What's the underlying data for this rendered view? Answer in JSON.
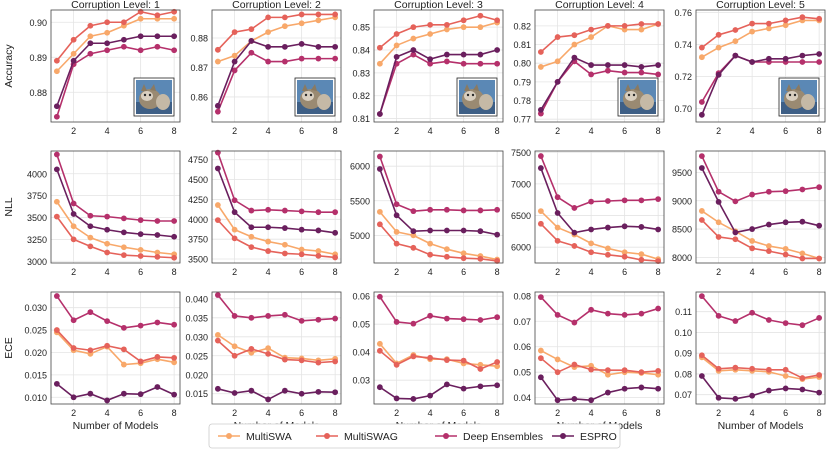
{
  "chart_data": {
    "type": "line",
    "layout": "grid 3 rows x 5 columns",
    "columns": [
      "Corruption Level: 1",
      "Corruption Level: 2",
      "Corruption Level: 3",
      "Corruption Level: 4",
      "Corruption Level: 5"
    ],
    "rows": [
      "Accuracy",
      "NLL",
      "ECE"
    ],
    "xlabel": "Number of Models",
    "x": [
      1,
      2,
      3,
      4,
      5,
      6,
      7,
      8
    ],
    "x_ticks": [
      "2",
      "4",
      "6",
      "8"
    ],
    "grid": true,
    "legend": {
      "placement": "bottom-center",
      "entries": [
        "MultiSWA",
        "MultiSWAG",
        "Deep Ensembles",
        "ESPRO"
      ]
    },
    "colors": {
      "MultiSWA": "#f8a86a",
      "MultiSWAG": "#e5625a",
      "Deep Ensembles": "#b5306b",
      "ESPRO": "#6a1f5e",
      "grid": "#e4e4e4",
      "frame": "#444444"
    },
    "thumbnail_icon": "cifar-cat-image",
    "panels": [
      {
        "row": 0,
        "col": 0,
        "ylim": [
          0.8715,
          0.9035
        ],
        "yticks": [
          0.88,
          0.89,
          0.9
        ],
        "ytick_labels": [
          "0.88",
          "0.89",
          "0.90"
        ],
        "series": {
          "MultiSWA": [
            0.886,
            0.891,
            0.896,
            0.897,
            0.899,
            0.901,
            0.901,
            0.901
          ],
          "MultiSWAG": [
            0.889,
            0.895,
            0.899,
            0.9,
            0.9,
            0.903,
            0.902,
            0.903
          ],
          "Deep Ensembles": [
            0.873,
            0.888,
            0.891,
            0.892,
            0.893,
            0.892,
            0.893,
            0.892
          ],
          "ESPRO": [
            0.876,
            0.889,
            0.894,
            0.894,
            0.895,
            0.896,
            0.896,
            0.896
          ]
        }
      },
      {
        "row": 0,
        "col": 1,
        "ylim": [
          0.8515,
          0.8895
        ],
        "yticks": [
          0.86,
          0.87,
          0.88
        ],
        "ytick_labels": [
          "0.86",
          "0.87",
          "0.88"
        ],
        "series": {
          "MultiSWA": [
            0.872,
            0.874,
            0.879,
            0.882,
            0.884,
            0.885,
            0.886,
            0.887
          ],
          "MultiSWAG": [
            0.876,
            0.882,
            0.883,
            0.887,
            0.887,
            0.888,
            0.888,
            0.888
          ],
          "Deep Ensembles": [
            0.855,
            0.869,
            0.875,
            0.872,
            0.872,
            0.873,
            0.873,
            0.873
          ],
          "ESPRO": [
            0.857,
            0.872,
            0.879,
            0.877,
            0.877,
            0.878,
            0.877,
            0.877
          ]
        }
      },
      {
        "row": 0,
        "col": 2,
        "ylim": [
          0.8085,
          0.8575
        ],
        "yticks": [
          0.81,
          0.82,
          0.83,
          0.84,
          0.85
        ],
        "ytick_labels": [
          "0.81",
          "0.82",
          "0.83",
          "0.84",
          "0.85"
        ],
        "series": {
          "MultiSWA": [
            0.834,
            0.842,
            0.845,
            0.847,
            0.849,
            0.85,
            0.85,
            0.852
          ],
          "MultiSWAG": [
            0.841,
            0.847,
            0.85,
            0.851,
            0.851,
            0.853,
            0.855,
            0.853
          ],
          "Deep Ensembles": [
            0.812,
            0.834,
            0.838,
            0.834,
            0.835,
            0.834,
            0.834,
            0.834
          ],
          "ESPRO": [
            0.812,
            0.837,
            0.84,
            0.836,
            0.838,
            0.838,
            0.838,
            0.84
          ]
        }
      },
      {
        "row": 0,
        "col": 3,
        "ylim": [
          0.7685,
          0.8285
        ],
        "yticks": [
          0.77,
          0.78,
          0.79,
          0.8,
          0.81,
          0.82
        ],
        "ytick_labels": [
          "0.77",
          "0.78",
          "0.79",
          "0.80",
          "0.81",
          "0.82"
        ],
        "series": {
          "MultiSWA": [
            0.798,
            0.801,
            0.81,
            0.814,
            0.82,
            0.818,
            0.818,
            0.821
          ],
          "MultiSWAG": [
            0.806,
            0.814,
            0.815,
            0.818,
            0.82,
            0.82,
            0.821,
            0.821
          ],
          "Deep Ensembles": [
            0.773,
            0.79,
            0.801,
            0.794,
            0.796,
            0.795,
            0.795,
            0.794
          ],
          "ESPRO": [
            0.775,
            0.79,
            0.803,
            0.799,
            0.799,
            0.799,
            0.798,
            0.799
          ]
        }
      },
      {
        "row": 0,
        "col": 4,
        "ylim": [
          0.6915,
          0.7615
        ],
        "yticks": [
          0.7,
          0.72,
          0.74,
          0.76
        ],
        "ytick_labels": [
          "0.70",
          "0.72",
          "0.74",
          "0.76"
        ],
        "series": {
          "MultiSWA": [
            0.732,
            0.738,
            0.742,
            0.748,
            0.75,
            0.752,
            0.755,
            0.755
          ],
          "MultiSWAG": [
            0.738,
            0.746,
            0.749,
            0.753,
            0.753,
            0.755,
            0.757,
            0.756
          ],
          "Deep Ensembles": [
            0.704,
            0.722,
            0.733,
            0.729,
            0.729,
            0.729,
            0.729,
            0.729
          ],
          "ESPRO": [
            0.696,
            0.721,
            0.733,
            0.729,
            0.731,
            0.731,
            0.733,
            0.734
          ]
        }
      },
      {
        "row": 1,
        "col": 0,
        "ylim": [
          2980,
          4260
        ],
        "yticks": [
          3000,
          3250,
          3500,
          3750,
          4000
        ],
        "ytick_labels": [
          "3000",
          "3250",
          "3500",
          "3750",
          "4000"
        ],
        "series": {
          "MultiSWA": [
            3680,
            3400,
            3270,
            3200,
            3160,
            3130,
            3100,
            3080
          ],
          "MultiSWAG": [
            3510,
            3250,
            3170,
            3100,
            3070,
            3060,
            3050,
            3040
          ],
          "Deep Ensembles": [
            4220,
            3660,
            3520,
            3510,
            3490,
            3470,
            3460,
            3460
          ],
          "ESPRO": [
            4050,
            3540,
            3400,
            3360,
            3330,
            3310,
            3300,
            3280
          ]
        }
      },
      {
        "row": 1,
        "col": 1,
        "ylim": [
          3450,
          4860
        ],
        "yticks": [
          3500,
          3750,
          4000,
          4250,
          4500,
          4750
        ],
        "ytick_labels": [
          "3500",
          "3750",
          "4000",
          "4250",
          "4500",
          "4750"
        ],
        "series": {
          "MultiSWA": [
            4180,
            3870,
            3780,
            3720,
            3680,
            3620,
            3600,
            3560
          ],
          "MultiSWAG": [
            3990,
            3760,
            3650,
            3600,
            3570,
            3560,
            3540,
            3520
          ],
          "Deep Ensembles": [
            4840,
            4240,
            4110,
            4120,
            4110,
            4100,
            4090,
            4090
          ],
          "ESPRO": [
            4640,
            4090,
            3900,
            3900,
            3890,
            3870,
            3860,
            3830
          ]
        }
      },
      {
        "row": 1,
        "col": 2,
        "ylim": [
          4600,
          6220
        ],
        "yticks": [
          5000,
          5500,
          6000
        ],
        "ytick_labels": [
          "5000",
          "5500",
          "6000"
        ],
        "series": {
          "MultiSWA": [
            5340,
            5050,
            5000,
            4880,
            4800,
            4740,
            4700,
            4650
          ],
          "MultiSWAG": [
            5160,
            4880,
            4820,
            4720,
            4690,
            4670,
            4660,
            4630
          ],
          "Deep Ensembles": [
            6140,
            5450,
            5350,
            5370,
            5370,
            5360,
            5360,
            5370
          ],
          "ESPRO": [
            5960,
            5290,
            5060,
            5070,
            5070,
            5070,
            5060,
            5010
          ]
        }
      },
      {
        "row": 1,
        "col": 3,
        "ylim": [
          5750,
          7520
        ],
        "yticks": [
          6000,
          6500,
          7000,
          7500
        ],
        "ytick_labels": [
          "6000",
          "6500",
          "7000",
          "7500"
        ],
        "series": {
          "MultiSWA": [
            6570,
            6310,
            6200,
            6060,
            5980,
            5920,
            5890,
            5810
          ],
          "MultiSWAG": [
            6370,
            6100,
            6020,
            5920,
            5880,
            5850,
            5800,
            5780
          ],
          "Deep Ensembles": [
            7440,
            6790,
            6620,
            6720,
            6730,
            6740,
            6740,
            6760
          ],
          "ESPRO": [
            7250,
            6540,
            6230,
            6280,
            6310,
            6330,
            6320,
            6280
          ]
        }
      },
      {
        "row": 1,
        "col": 4,
        "ylim": [
          7900,
          9880
        ],
        "yticks": [
          8000,
          8500,
          9000,
          9500
        ],
        "ytick_labels": [
          "8000",
          "8500",
          "9000",
          "9500"
        ],
        "series": {
          "MultiSWA": [
            8820,
            8620,
            8460,
            8290,
            8200,
            8150,
            8070,
            7980
          ],
          "MultiSWAG": [
            8660,
            8360,
            8320,
            8160,
            8110,
            8050,
            7980,
            7980
          ],
          "Deep Ensembles": [
            9790,
            9160,
            8990,
            9110,
            9160,
            9170,
            9200,
            9240
          ],
          "ESPRO": [
            9580,
            8980,
            8440,
            8500,
            8580,
            8620,
            8630,
            8560
          ]
        }
      },
      {
        "row": 2,
        "col": 0,
        "ylim": [
          0.0085,
          0.0335
        ],
        "yticks": [
          0.01,
          0.015,
          0.02,
          0.025,
          0.03
        ],
        "ytick_labels": [
          "0.010",
          "0.015",
          "0.020",
          "0.025",
          "0.030"
        ],
        "series": {
          "MultiSWA": [
            0.0245,
            0.0205,
            0.0197,
            0.0213,
            0.0173,
            0.0176,
            0.0185,
            0.0178
          ],
          "MultiSWAG": [
            0.025,
            0.021,
            0.0205,
            0.0215,
            0.0207,
            0.018,
            0.019,
            0.0188
          ],
          "Deep Ensembles": [
            0.0326,
            0.0272,
            0.029,
            0.027,
            0.0255,
            0.026,
            0.0267,
            0.0262
          ],
          "ESPRO": [
            0.013,
            0.01,
            0.0108,
            0.0093,
            0.0108,
            0.0107,
            0.0123,
            0.0106
          ]
        }
      },
      {
        "row": 2,
        "col": 1,
        "ylim": [
          0.0123,
          0.0418
        ],
        "yticks": [
          0.015,
          0.02,
          0.025,
          0.03,
          0.035,
          0.04
        ],
        "ytick_labels": [
          "0.015",
          "0.020",
          "0.025",
          "0.030",
          "0.035",
          "0.040"
        ],
        "series": {
          "MultiSWA": [
            0.0305,
            0.0275,
            0.0258,
            0.027,
            0.0245,
            0.0243,
            0.0238,
            0.0242
          ],
          "MultiSWAG": [
            0.029,
            0.025,
            0.0268,
            0.0255,
            0.024,
            0.0238,
            0.0232,
            0.0235
          ],
          "Deep Ensembles": [
            0.041,
            0.0355,
            0.035,
            0.0355,
            0.0358,
            0.0342,
            0.0345,
            0.0348
          ],
          "ESPRO": [
            0.0163,
            0.0152,
            0.0158,
            0.0135,
            0.0158,
            0.015,
            0.0155,
            0.0154
          ]
        }
      },
      {
        "row": 2,
        "col": 2,
        "ylim": [
          0.0215,
          0.0615
        ],
        "yticks": [
          0.03,
          0.04,
          0.05,
          0.06
        ],
        "ytick_labels": [
          "0.03",
          "0.04",
          "0.05",
          "0.06"
        ],
        "series": {
          "MultiSWA": [
            0.043,
            0.036,
            0.039,
            0.0375,
            0.0375,
            0.036,
            0.0355,
            0.035
          ],
          "MultiSWAG": [
            0.0405,
            0.0355,
            0.0385,
            0.038,
            0.0372,
            0.037,
            0.034,
            0.0365
          ],
          "Deep Ensembles": [
            0.0598,
            0.0508,
            0.0502,
            0.053,
            0.052,
            0.0518,
            0.0515,
            0.0525
          ],
          "ESPRO": [
            0.0275,
            0.0235,
            0.0233,
            0.0245,
            0.0285,
            0.027,
            0.0278,
            0.0282
          ]
        }
      },
      {
        "row": 2,
        "col": 3,
        "ylim": [
          0.0375,
          0.0815
        ],
        "yticks": [
          0.04,
          0.05,
          0.06,
          0.07,
          0.08
        ],
        "ytick_labels": [
          "0.04",
          "0.05",
          "0.06",
          "0.07",
          "0.08"
        ],
        "series": {
          "MultiSWA": [
            0.0585,
            0.055,
            0.052,
            0.0525,
            0.049,
            0.05,
            0.0497,
            0.049
          ],
          "MultiSWAG": [
            0.0555,
            0.05,
            0.053,
            0.051,
            0.0508,
            0.0508,
            0.05,
            0.0505
          ],
          "Deep Ensembles": [
            0.0795,
            0.0725,
            0.0695,
            0.0745,
            0.073,
            0.0725,
            0.073,
            0.075
          ],
          "ESPRO": [
            0.048,
            0.039,
            0.0395,
            0.039,
            0.042,
            0.0435,
            0.044,
            0.0435
          ]
        }
      },
      {
        "row": 2,
        "col": 4,
        "ylim": [
          0.0655,
          0.1195
        ],
        "yticks": [
          0.07,
          0.08,
          0.09,
          0.1,
          0.11
        ],
        "ytick_labels": [
          "0.07",
          "0.08",
          "0.09",
          "0.10",
          "0.11"
        ],
        "series": {
          "MultiSWA": [
            0.088,
            0.0815,
            0.082,
            0.0815,
            0.081,
            0.079,
            0.0775,
            0.0785
          ],
          "MultiSWAG": [
            0.089,
            0.0825,
            0.083,
            0.0825,
            0.082,
            0.082,
            0.078,
            0.0795
          ],
          "Deep Ensembles": [
            0.1175,
            0.108,
            0.1055,
            0.1095,
            0.106,
            0.1045,
            0.1035,
            0.107
          ],
          "ESPRO": [
            0.079,
            0.0685,
            0.068,
            0.0695,
            0.072,
            0.073,
            0.0725,
            0.071
          ]
        }
      }
    ]
  }
}
